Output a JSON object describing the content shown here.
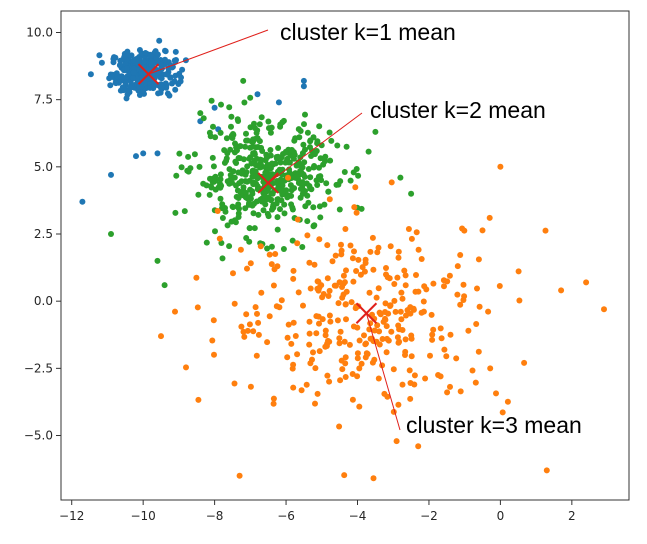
{
  "chart_data": {
    "type": "scatter",
    "title": "",
    "xlabel": "",
    "ylabel": "",
    "xlim": [
      -12.3,
      3.6
    ],
    "ylim": [
      -7.4,
      10.8
    ],
    "xticks": [
      -12,
      -10,
      -8,
      -6,
      -4,
      -2,
      0,
      2
    ],
    "xtick_labels": [
      "−12",
      "−10",
      "−8",
      "−6",
      "−4",
      "−2",
      "0",
      "2"
    ],
    "yticks": [
      -5.0,
      -2.5,
      0.0,
      2.5,
      5.0,
      7.5,
      10.0
    ],
    "ytick_labels": [
      "−5.0",
      "−2.5",
      "0.0",
      "2.5",
      "5.0",
      "7.5",
      "10.0"
    ],
    "grid": false,
    "series": [
      {
        "color": "#1f77b4",
        "center": [
          -10.0,
          8.5
        ],
        "spread": [
          0.45,
          0.4
        ],
        "count": 300,
        "extra_points": [
          [
            -11.7,
            3.7
          ],
          [
            -10.9,
            4.7
          ],
          [
            -10.2,
            5.4
          ],
          [
            -10.0,
            5.5
          ],
          [
            -9.6,
            5.5
          ],
          [
            -8.0,
            7.2
          ],
          [
            -8.4,
            6.7
          ],
          [
            -5.5,
            8.2
          ],
          [
            -5.5,
            8.0
          ],
          [
            -6.8,
            7.7
          ],
          [
            -6.2,
            7.4
          ],
          [
            -7.9,
            6.4
          ]
        ]
      },
      {
        "color": "#2ca02c",
        "center": [
          -6.6,
          4.6
        ],
        "spread": [
          1.0,
          1.0
        ],
        "count": 450,
        "extra_points": [
          [
            -10.9,
            2.5
          ],
          [
            -9.6,
            1.5
          ],
          [
            -9.4,
            0.6
          ],
          [
            -8.4,
            7.0
          ],
          [
            -7.2,
            8.2
          ],
          [
            -3.5,
            6.3
          ],
          [
            -2.8,
            4.6
          ],
          [
            -2.5,
            4.0
          ]
        ]
      },
      {
        "color": "#ff7f0e",
        "center": [
          -3.7,
          -0.5
        ],
        "spread": [
          2.0,
          1.8
        ],
        "count": 330,
        "extra_points": [
          [
            0.0,
            5.0
          ],
          [
            2.9,
            -0.3
          ],
          [
            2.4,
            0.7
          ],
          [
            1.7,
            0.4
          ],
          [
            1.3,
            -6.3
          ],
          [
            -7.3,
            -6.5
          ],
          [
            -2.3,
            -5.4
          ],
          [
            -0.3,
            3.1
          ],
          [
            -9.5,
            -1.3
          ]
        ]
      }
    ],
    "means": [
      {
        "x": -9.85,
        "y": 8.45,
        "color": "#e0201b"
      },
      {
        "x": -6.5,
        "y": 4.4,
        "color": "#e0201b"
      },
      {
        "x": -3.75,
        "y": -0.45,
        "color": "#e0201b"
      }
    ],
    "annotations": [
      {
        "text": "cluster k=1 mean",
        "target_index": 0
      },
      {
        "text": "cluster k=2 mean",
        "target_index": 1
      },
      {
        "text": "cluster k=3 mean",
        "target_index": 2
      }
    ]
  }
}
